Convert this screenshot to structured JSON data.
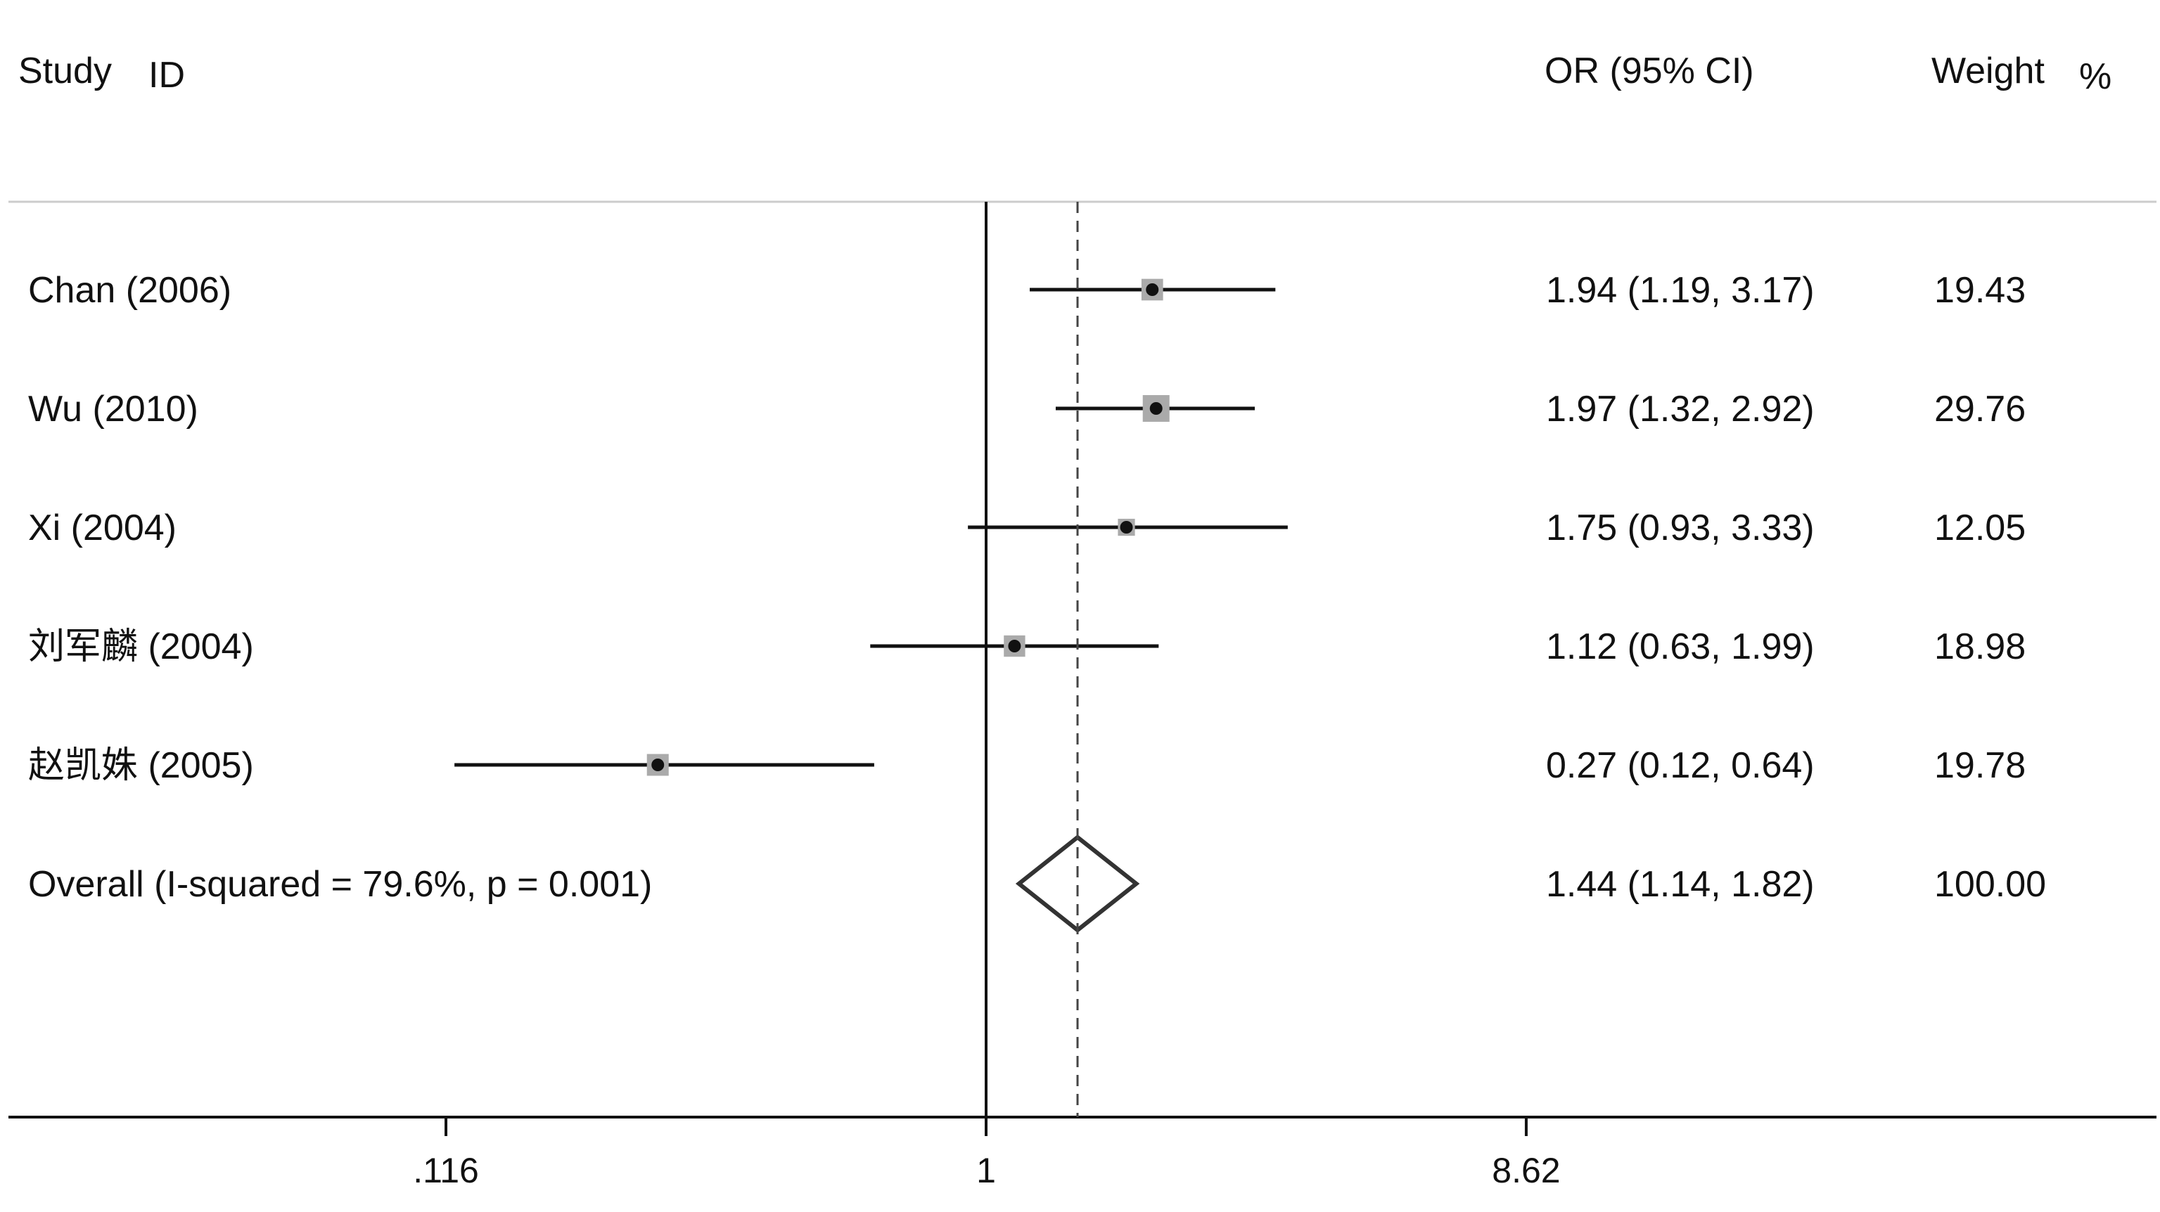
{
  "chart_data": {
    "type": "forest",
    "scale": "log",
    "headers": {
      "study": "Study",
      "id": "ID",
      "or_ci": "OR (95% CI)",
      "weight": "Weight",
      "percent": "%"
    },
    "studies": [
      {
        "label": "Chan (2006)",
        "or": 1.94,
        "lo": 1.19,
        "hi": 3.17,
        "ci_text": "1.94 (1.19, 3.17)",
        "weight": 19.43,
        "weight_text": "19.43"
      },
      {
        "label": "Wu (2010)",
        "or": 1.97,
        "lo": 1.32,
        "hi": 2.92,
        "ci_text": "1.97 (1.32, 2.92)",
        "weight": 29.76,
        "weight_text": "29.76"
      },
      {
        "label": "Xi (2004)",
        "or": 1.75,
        "lo": 0.93,
        "hi": 3.33,
        "ci_text": "1.75 (0.93, 3.33)",
        "weight": 12.05,
        "weight_text": "12.05"
      },
      {
        "label": "刘军麟 (2004)",
        "or": 1.12,
        "lo": 0.63,
        "hi": 1.99,
        "ci_text": "1.12 (0.63, 1.99)",
        "weight": 18.98,
        "weight_text": "18.98"
      },
      {
        "label": "赵凯姝 (2005)",
        "or": 0.27,
        "lo": 0.12,
        "hi": 0.64,
        "ci_text": "0.27 (0.12, 0.64)",
        "weight": 19.78,
        "weight_text": "19.78"
      }
    ],
    "overall": {
      "label": "Overall  (I-squared = 79.6%, p = 0.001)",
      "or": 1.44,
      "lo": 1.14,
      "hi": 1.82,
      "ci_text": "1.44 (1.14, 1.82)",
      "weight_text": "100.00"
    },
    "ticks": [
      {
        "value": 0.116,
        "label": ".116"
      },
      {
        "value": 1,
        "label": "1"
      },
      {
        "value": 8.62,
        "label": "8.62"
      }
    ],
    "null_value": 1,
    "colors": {
      "line": "#111111",
      "box": "#aaaaaa",
      "divider": "#cccccc",
      "diamond": "#333333"
    }
  }
}
